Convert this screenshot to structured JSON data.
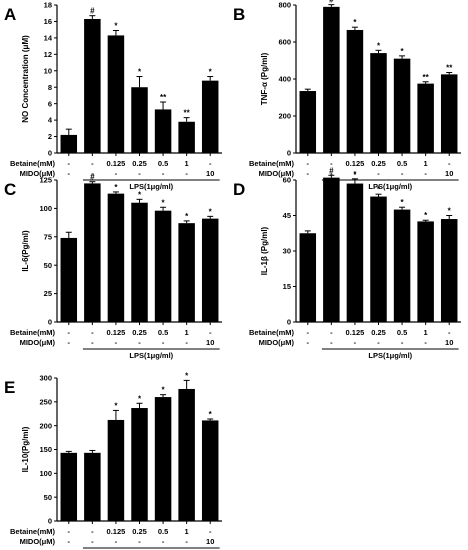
{
  "figure": {
    "row_labels": {
      "betaine": "Betaine(mM)",
      "mido": "MIDO(μM)"
    },
    "betaine_cells": [
      "-",
      "-",
      "0.125",
      "0.25",
      "0.5",
      "1",
      "-"
    ],
    "mido_cells": [
      "-",
      "-",
      "-",
      "-",
      "-",
      "-",
      "10"
    ],
    "lps_label": "LPS(1μg/ml)"
  },
  "chart_data": [
    {
      "panel": "A",
      "type": "bar",
      "ylabel": "NO Concentration (μM)",
      "ylim": [
        0,
        18
      ],
      "yticks": [
        0,
        2,
        4,
        6,
        8,
        10,
        12,
        14,
        16,
        18
      ],
      "values": [
        2.2,
        16.3,
        14.3,
        8.0,
        5.3,
        3.8,
        8.8
      ],
      "errors": [
        0.7,
        0.4,
        0.6,
        1.3,
        0.9,
        0.5,
        0.5
      ],
      "significance": [
        "",
        "#",
        "*",
        "*",
        "**",
        "**",
        "*"
      ],
      "color": "#000000"
    },
    {
      "panel": "B",
      "type": "bar",
      "ylabel": "TNF-α (Pg/ml)",
      "ylim": [
        0,
        800
      ],
      "yticks": [
        0,
        200,
        400,
        600,
        800
      ],
      "values": [
        335,
        790,
        665,
        540,
        510,
        375,
        425
      ],
      "errors": [
        10,
        12,
        15,
        15,
        15,
        10,
        10
      ],
      "significance": [
        "",
        "#",
        "*",
        "*",
        "*",
        "**",
        "**"
      ],
      "color": "#000000"
    },
    {
      "panel": "C",
      "type": "bar",
      "ylabel": "IL-6(Pg/ml)",
      "ylim": [
        0,
        125
      ],
      "yticks": [
        0,
        25,
        50,
        75,
        100,
        125
      ],
      "values": [
        74,
        122,
        113,
        105,
        98,
        87,
        91
      ],
      "errors": [
        5,
        1.5,
        1.5,
        3,
        3,
        2,
        2
      ],
      "significance": [
        "",
        "#",
        "*",
        "*",
        "*",
        "*",
        "*"
      ],
      "color": "#000000"
    },
    {
      "panel": "D",
      "type": "bar",
      "ylabel": "IL-1β (Pg/ml)",
      "ylim": [
        0,
        60
      ],
      "yticks": [
        0,
        15,
        30,
        45,
        60
      ],
      "values": [
        37.5,
        61,
        58.5,
        53,
        47.5,
        42.5,
        43.5
      ],
      "errors": [
        1,
        1,
        2,
        1,
        1,
        0.5,
        1.5
      ],
      "significance": [
        "",
        "#",
        "*",
        "*",
        "*",
        "*",
        "*"
      ],
      "color": "#000000"
    },
    {
      "panel": "E",
      "type": "bar",
      "ylabel": "IL-10(Pg/ml)",
      "ylim": [
        0,
        300
      ],
      "yticks": [
        0,
        50,
        100,
        150,
        200,
        250,
        300
      ],
      "values": [
        143,
        143,
        212,
        237,
        260,
        277,
        211
      ],
      "errors": [
        3,
        5,
        20,
        10,
        5,
        18,
        3
      ],
      "significance": [
        "",
        "",
        "*",
        "*",
        "*",
        "*",
        "*"
      ],
      "color": "#000000"
    }
  ]
}
